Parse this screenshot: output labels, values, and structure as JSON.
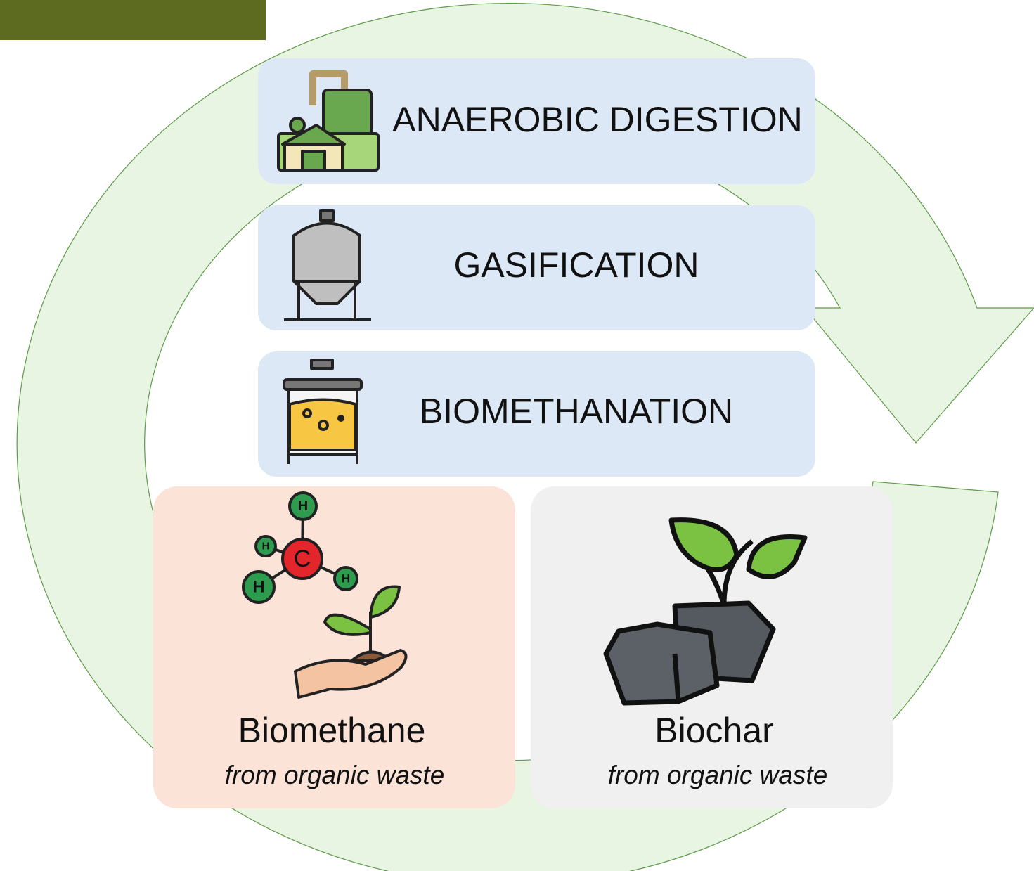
{
  "processes": [
    {
      "label": "ANAEROBIC DIGESTION"
    },
    {
      "label": "GASIFICATION"
    },
    {
      "label": "BIOMETHANATION"
    }
  ],
  "products": [
    {
      "name": "Biomethane",
      "source": "from organic waste"
    },
    {
      "name": "Biochar",
      "source": "from organic waste"
    }
  ],
  "molecule": {
    "center": "C",
    "atoms": [
      "H",
      "H",
      "H",
      "H"
    ]
  }
}
